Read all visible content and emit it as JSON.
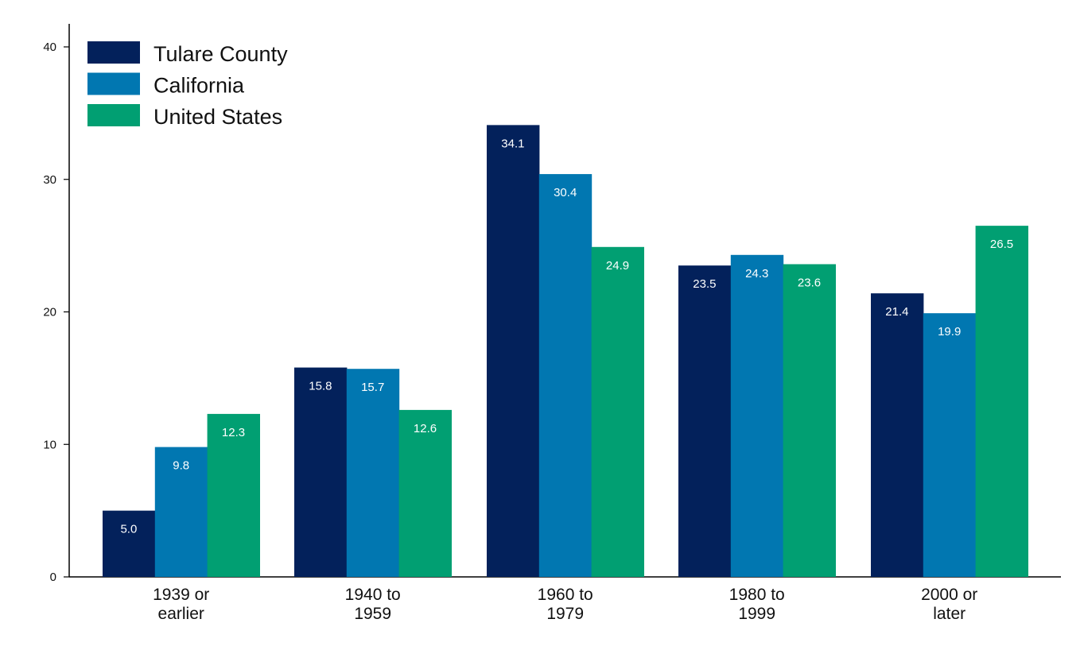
{
  "chart_data": {
    "type": "bar",
    "title": "",
    "xlabel": "",
    "ylabel": "",
    "categories": [
      [
        "1939 or",
        "earlier"
      ],
      [
        "1940 to",
        "1959"
      ],
      [
        "1960 to",
        "1979"
      ],
      [
        "1980 to",
        "1999"
      ],
      [
        "2000 or",
        "later"
      ]
    ],
    "series": [
      {
        "name": "Tulare County",
        "color": "#03215b",
        "values": [
          5.0,
          15.8,
          34.1,
          23.5,
          21.4
        ]
      },
      {
        "name": "California",
        "color": "#0177b1",
        "values": [
          9.8,
          15.7,
          30.4,
          24.3,
          19.9
        ]
      },
      {
        "name": "United States",
        "color": "#019f72",
        "values": [
          12.3,
          12.6,
          24.9,
          23.6,
          26.5
        ]
      }
    ],
    "ylim": [
      0,
      40
    ],
    "yticks": [
      0,
      10,
      20,
      30,
      40
    ],
    "grid": false,
    "legend_position": "top-left",
    "data_labels": true
  }
}
